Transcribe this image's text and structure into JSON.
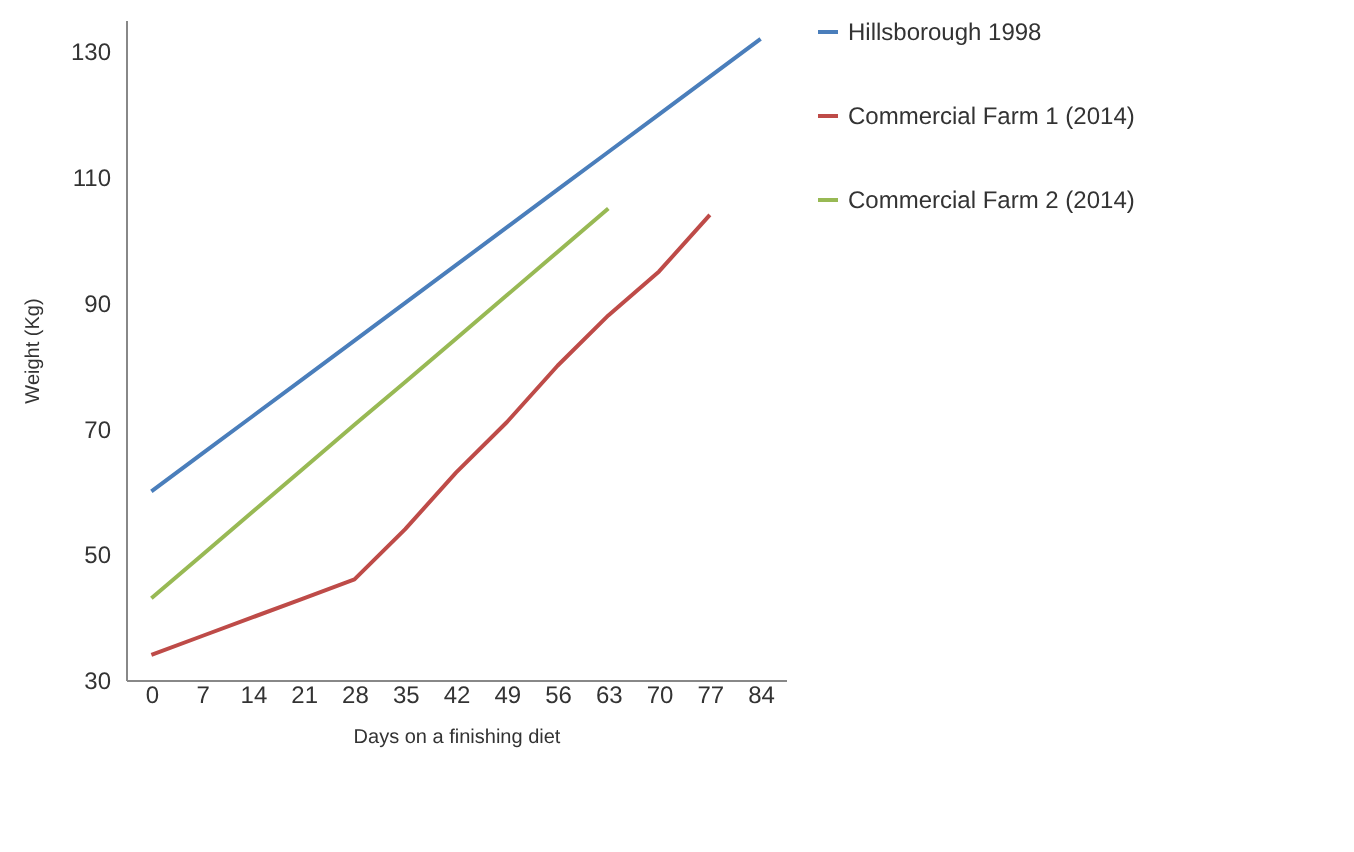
{
  "chart_data": {
    "type": "line",
    "xlabel": "Days on a finishing diet",
    "ylabel": "Weight (Kg)",
    "categories": [
      "0",
      "7",
      "14",
      "21",
      "28",
      "35",
      "42",
      "49",
      "56",
      "63",
      "70",
      "77",
      "84"
    ],
    "series": [
      {
        "name": "Hillsborough 1998",
        "color": "#4a7ebb",
        "values": [
          60,
          66,
          72,
          78,
          84,
          90,
          96,
          102,
          108,
          114,
          120,
          126,
          132
        ]
      },
      {
        "name": "Commercial Farm 1 (2014)",
        "color": "#be4b48",
        "values": [
          34,
          37,
          40,
          43,
          46,
          54,
          63,
          71,
          80,
          88,
          95,
          104,
          null
        ]
      },
      {
        "name": "Commercial Farm 2 (2014)",
        "color": "#98b954",
        "values": [
          43,
          49.9,
          56.8,
          63.7,
          70.6,
          77.4,
          84.3,
          91.2,
          98.1,
          105,
          null,
          null,
          null
        ]
      }
    ],
    "ylim": [
      30,
      135
    ],
    "yticks": [
      30,
      50,
      70,
      90,
      110,
      130
    ],
    "grid": false,
    "legend": "right",
    "marker": "none",
    "line_style": "solid"
  }
}
